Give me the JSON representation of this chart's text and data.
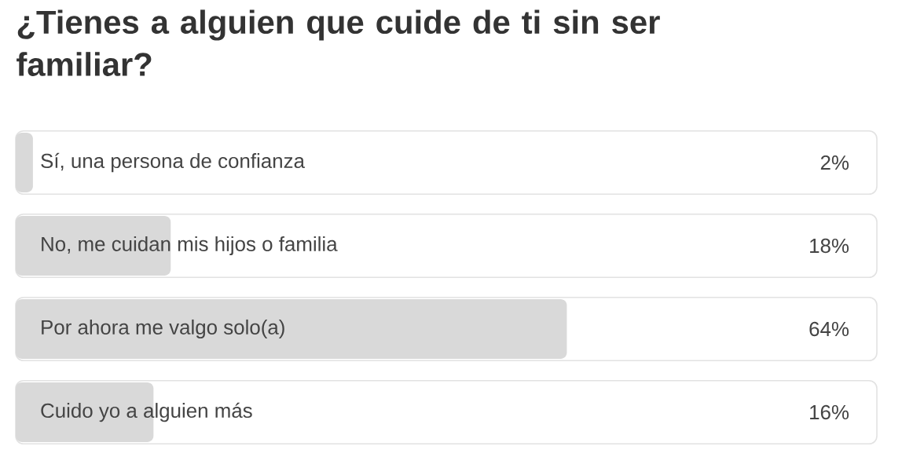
{
  "chart_data": {
    "type": "bar",
    "title": "¿Tienes a alguien que cuide de ti sin ser familiar?",
    "orientation": "horizontal",
    "categories": [
      "Sí, una persona de confianza",
      "No, me cuidan mis hijos o familia",
      "Por ahora me valgo solo(a)",
      "Cuido yo a alguien más"
    ],
    "values": [
      2,
      18,
      64,
      16
    ],
    "value_labels": [
      "2%",
      "18%",
      "64%",
      "16%"
    ],
    "color": "#d9d9d9",
    "xlim": [
      0,
      100
    ]
  }
}
